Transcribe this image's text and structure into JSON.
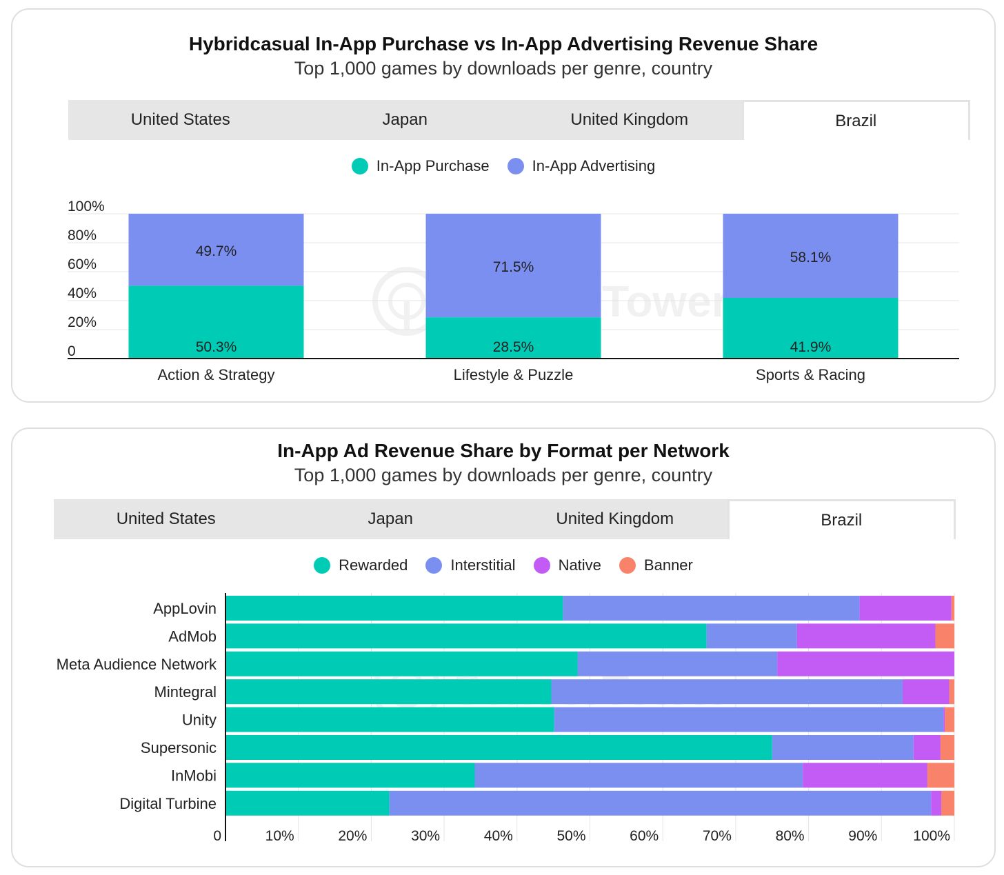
{
  "chart_data": [
    {
      "type": "bar",
      "stacked": true,
      "orientation": "vertical",
      "title": "Hybridcasual In-App Purchase vs In-App Advertising Revenue Share",
      "subtitle": "Top 1,000 games by downloads per genre, country",
      "tabs": [
        "United States",
        "Japan",
        "United Kingdom",
        "Brazil"
      ],
      "active_tab": "Brazil",
      "categories": [
        "Action & Strategy",
        "Lifestyle & Puzzle",
        "Sports & Racing"
      ],
      "series": [
        {
          "name": "In-App Purchase",
          "color": "#00cbb5",
          "values": [
            50.3,
            28.5,
            41.9
          ],
          "labels": [
            "50.3%",
            "28.5%",
            "41.9%"
          ]
        },
        {
          "name": "In-App Advertising",
          "color": "#7b8ff0",
          "values": [
            49.7,
            71.5,
            58.1
          ],
          "labels": [
            "49.7%",
            "71.5%",
            "58.1%"
          ]
        }
      ],
      "ylim": [
        0,
        100
      ],
      "yticks": [
        0,
        20,
        40,
        60,
        80,
        100
      ],
      "ytick_labels": [
        "0",
        "20%",
        "40%",
        "60%",
        "80%",
        "100%"
      ],
      "grid": true,
      "legend_position": "top-center",
      "watermark": "SensorTower"
    },
    {
      "type": "bar",
      "stacked": true,
      "orientation": "horizontal",
      "title": "In-App Ad Revenue Share by Format per Network",
      "subtitle": "Top 1,000 games by downloads per genre, country",
      "tabs": [
        "United States",
        "Japan",
        "United Kingdom",
        "Brazil"
      ],
      "active_tab": "Brazil",
      "categories": [
        "AppLovin",
        "AdMob",
        "Meta Audience Network",
        "Mintegral",
        "Unity",
        "Supersonic",
        "InMobi",
        "Digital Turbine"
      ],
      "series": [
        {
          "name": "Rewarded",
          "color": "#00cbb5",
          "values": [
            46.3,
            66.0,
            48.3,
            44.7,
            45.1,
            75.0,
            34.2,
            22.5
          ]
        },
        {
          "name": "Interstitial",
          "color": "#7b8ff0",
          "values": [
            40.7,
            12.4,
            27.4,
            48.2,
            53.4,
            19.4,
            45.0,
            74.3
          ]
        },
        {
          "name": "Native",
          "color": "#c25cf5",
          "values": [
            12.6,
            19.0,
            24.3,
            6.4,
            0.2,
            3.7,
            17.1,
            1.4
          ]
        },
        {
          "name": "Banner",
          "color": "#f8836a",
          "values": [
            0.4,
            2.6,
            0.0,
            0.7,
            1.3,
            1.9,
            3.7,
            1.8
          ]
        }
      ],
      "xlim": [
        0,
        100
      ],
      "xticks": [
        0,
        10,
        20,
        30,
        40,
        50,
        60,
        70,
        80,
        90,
        100
      ],
      "xtick_labels": [
        "0",
        "10%",
        "20%",
        "30%",
        "40%",
        "50%",
        "60%",
        "70%",
        "80%",
        "90%",
        "100%"
      ],
      "grid": true,
      "legend_position": "top-center",
      "watermark": "SensorTower"
    }
  ]
}
